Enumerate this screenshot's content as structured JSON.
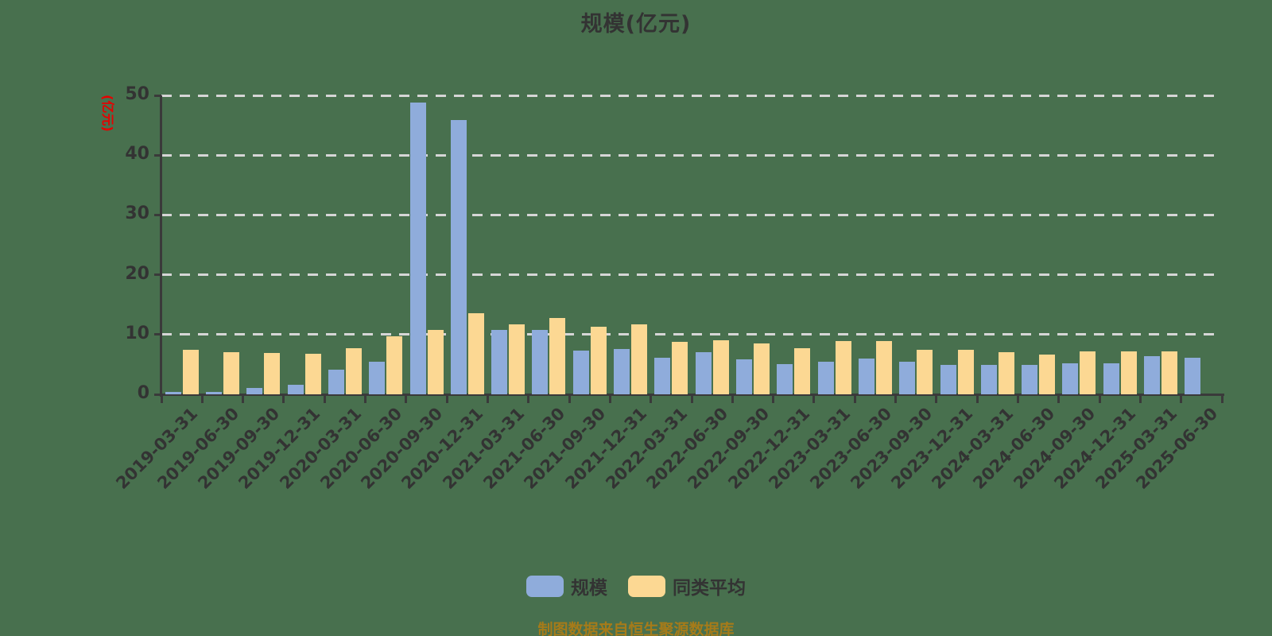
{
  "title": "规模(亿元)",
  "footer": "制图数据来自恒生聚源数据库",
  "y_axis": {
    "unit_label": "(亿元)",
    "unit_color": "#E60000",
    "ticks": [
      0,
      10,
      20,
      30,
      40,
      50
    ]
  },
  "legend": {
    "items": [
      {
        "label": "规模",
        "color": "#8FACDB"
      },
      {
        "label": "同类平均",
        "color": "#FCD893"
      }
    ]
  },
  "colors": {
    "background": "#48704E",
    "axis": "#3A3A3A",
    "gridline": "#D6D6D6",
    "text": "#333333",
    "footer_text": "#A67B19",
    "series_scale": "#8FACDB",
    "series_peer_avg": "#FCD893"
  },
  "chart_data": {
    "type": "bar",
    "title": "规模(亿元)",
    "xlabel": "",
    "ylabel": "(亿元)",
    "ylim": [
      0,
      50
    ],
    "grid": "horizontal dashed",
    "legend_position": "bottom",
    "categories": [
      "2019-03-31",
      "2019-06-30",
      "2019-09-30",
      "2019-12-31",
      "2020-03-31",
      "2020-06-30",
      "2020-09-30",
      "2020-12-31",
      "2021-03-31",
      "2021-06-30",
      "2021-09-30",
      "2021-12-31",
      "2022-03-31",
      "2022-06-30",
      "2022-09-30",
      "2022-12-31",
      "2023-03-31",
      "2023-06-30",
      "2023-09-30",
      "2023-12-31",
      "2024-03-31",
      "2024-06-30",
      "2024-09-30",
      "2024-12-31",
      "2025-03-31",
      "2025-06-30"
    ],
    "series": [
      {
        "name": "规模",
        "color": "#8FACDB",
        "values": [
          0.4,
          0.4,
          1.1,
          1.6,
          4.1,
          5.4,
          48.8,
          45.9,
          10.8,
          10.8,
          7.3,
          7.6,
          6.1,
          7.0,
          5.8,
          5.1,
          5.5,
          6.0,
          5.4,
          4.9,
          4.9,
          4.9,
          5.2,
          5.2,
          6.4,
          6.1
        ]
      },
      {
        "name": "同类平均",
        "color": "#FCD893",
        "values": [
          7.5,
          7.0,
          6.9,
          6.8,
          7.7,
          9.7,
          10.8,
          13.5,
          11.7,
          12.8,
          11.3,
          11.7,
          8.8,
          9.0,
          8.5,
          7.7,
          8.9,
          8.9,
          7.5,
          7.5,
          7.0,
          6.7,
          7.2,
          7.2,
          7.2,
          null
        ]
      }
    ]
  }
}
